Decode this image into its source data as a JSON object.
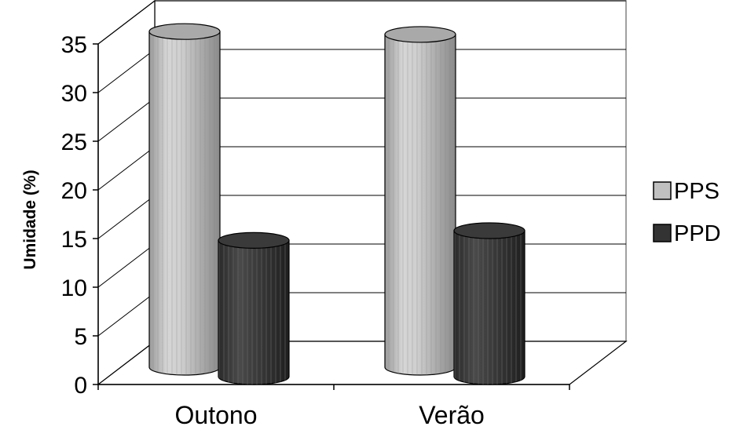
{
  "chart_data": {
    "type": "bar",
    "style": "3d-cylinder",
    "title": "",
    "xlabel": "",
    "ylabel": "Umidade (%)",
    "ylim": [
      0,
      35
    ],
    "yticks": [
      0,
      5,
      10,
      15,
      20,
      25,
      30,
      35
    ],
    "grid": true,
    "legend_position": "right",
    "categories": [
      "Outono",
      "Verão"
    ],
    "series": [
      {
        "name": "PPS",
        "values": [
          34.5,
          34.2
        ],
        "color": "#c0c0c0"
      },
      {
        "name": "PPD",
        "values": [
          14,
          15
        ],
        "color": "#333333"
      }
    ]
  }
}
